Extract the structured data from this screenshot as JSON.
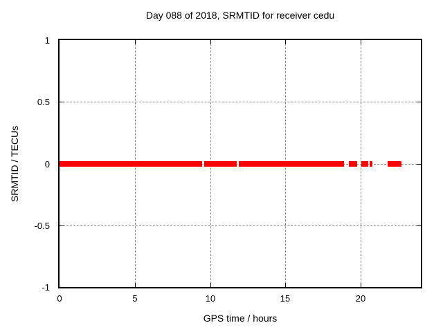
{
  "colors": {
    "background": "#ffffff",
    "border": "#000000",
    "grid": "#888888",
    "series_red": "#ff0000",
    "text": "#000000"
  },
  "chart_data": {
    "type": "scatter",
    "title": "Day 088 of 2018, SRMTID for receiver cedu",
    "xlabel": "GPS time / hours",
    "ylabel": "SRMTID / TECUs",
    "xlim": [
      0,
      24
    ],
    "ylim": [
      -1,
      1
    ],
    "grid": true,
    "legend": "none",
    "x_ticks": [
      {
        "v": 0,
        "label": "0"
      },
      {
        "v": 5,
        "label": "5"
      },
      {
        "v": 10,
        "label": "10"
      },
      {
        "v": 15,
        "label": "15"
      },
      {
        "v": 20,
        "label": "20"
      }
    ],
    "y_ticks": [
      {
        "v": 1,
        "label": "1"
      },
      {
        "v": 0.5,
        "label": "0.5"
      },
      {
        "v": 0,
        "label": "0"
      },
      {
        "v": -0.5,
        "label": "-0.5"
      },
      {
        "v": -1,
        "label": "-1"
      }
    ],
    "series": [
      {
        "name": "SRMTID",
        "color": "#ff0000",
        "marker": "filled-square",
        "y_value": 0,
        "segments_hours": [
          [
            0.0,
            9.49
          ],
          [
            9.63,
            11.77
          ],
          [
            11.91,
            18.89
          ],
          [
            19.21,
            19.75
          ],
          [
            20.03,
            20.48
          ],
          [
            20.62,
            20.8
          ],
          [
            21.8,
            22.72
          ]
        ]
      }
    ]
  }
}
